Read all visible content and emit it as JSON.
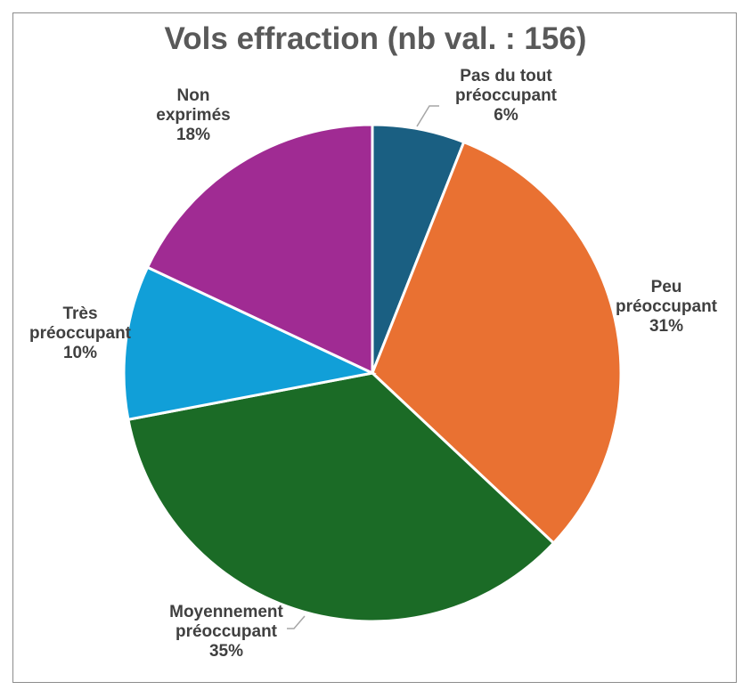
{
  "chart_data": {
    "type": "pie",
    "title": "Vols effraction (nb val. : 156)",
    "start": "top",
    "direction": "clockwise",
    "slices": [
      {
        "label": [
          "Pas du tout",
          "préoccupant"
        ],
        "percent_label": "6%",
        "value": 6,
        "color": "#1a5f82"
      },
      {
        "label": [
          "Peu",
          "préoccupant"
        ],
        "percent_label": "31%",
        "value": 31,
        "color": "#e97132"
      },
      {
        "label": [
          "Moyennement",
          "préoccupant"
        ],
        "percent_label": "35%",
        "value": 35,
        "color": "#1b6b26"
      },
      {
        "label": [
          "Très",
          "préoccupant"
        ],
        "percent_label": "10%",
        "value": 10,
        "color": "#119fd8"
      },
      {
        "label": [
          "Non",
          "exprimés"
        ],
        "percent_label": "18%",
        "value": 18,
        "color": "#a02b93"
      }
    ]
  }
}
